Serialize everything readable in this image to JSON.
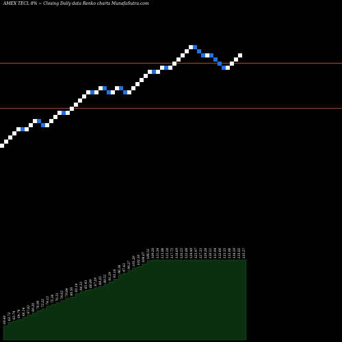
{
  "title": "AMEX  TECL  8% ~  Closing Daily data  Renko  charts MunafaSutra.com",
  "colors": {
    "background": "#000000",
    "up_brick": "#ffffff",
    "down_brick": "#1e73e8",
    "reference_line": "#b8632a",
    "volume_fill": "#0a3010",
    "volume_edge": "#1c5a22"
  },
  "chart_data": {
    "type": "renko",
    "grid": false,
    "reference_levels": [
      149.9,
      98.2
    ],
    "bricks": [
      {
        "dir": "up",
        "close": 57.7
      },
      {
        "dir": "up",
        "close": 62.4
      },
      {
        "dir": "up",
        "close": 67.1
      },
      {
        "dir": "up",
        "close": 71.8
      },
      {
        "dir": "up",
        "close": 76.5
      },
      {
        "dir": "down",
        "close": 71.8
      },
      {
        "dir": "up",
        "close": 76.5
      },
      {
        "dir": "up",
        "close": 81.2
      },
      {
        "dir": "up",
        "close": 85.9
      },
      {
        "dir": "down",
        "close": 81.2
      },
      {
        "dir": "down",
        "close": 76.5
      },
      {
        "dir": "up",
        "close": 81.2
      },
      {
        "dir": "up",
        "close": 85.9
      },
      {
        "dir": "up",
        "close": 90.6
      },
      {
        "dir": "up",
        "close": 95.3
      },
      {
        "dir": "down",
        "close": 90.6
      },
      {
        "dir": "up",
        "close": 95.3
      },
      {
        "dir": "up",
        "close": 100.0
      },
      {
        "dir": "up",
        "close": 104.7
      },
      {
        "dir": "up",
        "close": 109.4
      },
      {
        "dir": "up",
        "close": 114.1
      },
      {
        "dir": "up",
        "close": 118.8
      },
      {
        "dir": "down",
        "close": 114.1
      },
      {
        "dir": "up",
        "close": 118.8
      },
      {
        "dir": "up",
        "close": 123.5
      },
      {
        "dir": "down",
        "close": 118.8
      },
      {
        "dir": "down",
        "close": 114.1
      },
      {
        "dir": "up",
        "close": 118.8
      },
      {
        "dir": "up",
        "close": 123.5
      },
      {
        "dir": "down",
        "close": 118.8
      },
      {
        "dir": "down",
        "close": 114.1
      },
      {
        "dir": "up",
        "close": 118.8
      },
      {
        "dir": "up",
        "close": 123.5
      },
      {
        "dir": "up",
        "close": 128.2
      },
      {
        "dir": "up",
        "close": 132.9
      },
      {
        "dir": "up",
        "close": 137.6
      },
      {
        "dir": "up",
        "close": 142.3
      },
      {
        "dir": "down",
        "close": 137.6
      },
      {
        "dir": "up",
        "close": 142.3
      },
      {
        "dir": "up",
        "close": 147.0
      },
      {
        "dir": "down",
        "close": 142.3
      },
      {
        "dir": "up",
        "close": 147.0
      },
      {
        "dir": "up",
        "close": 151.7
      },
      {
        "dir": "up",
        "close": 156.4
      },
      {
        "dir": "up",
        "close": 161.1
      },
      {
        "dir": "up",
        "close": 165.8
      },
      {
        "dir": "up",
        "close": 170.5
      },
      {
        "dir": "down",
        "close": 165.8
      },
      {
        "dir": "down",
        "close": 161.1
      },
      {
        "dir": "down",
        "close": 156.4
      },
      {
        "dir": "up",
        "close": 161.1
      },
      {
        "dir": "down",
        "close": 156.4
      },
      {
        "dir": "down",
        "close": 151.7
      },
      {
        "dir": "down",
        "close": 147.0
      },
      {
        "dir": "down",
        "close": 142.3
      },
      {
        "dir": "up",
        "close": 147.0
      },
      {
        "dir": "up",
        "close": 151.7
      },
      {
        "dir": "up",
        "close": 156.4
      },
      {
        "dir": "up",
        "close": 161.1
      }
    ],
    "volume_labels": [
      "60.40",
      "62.72",
      "63.74",
      "64.74",
      "66.14",
      "67.82",
      "69.29",
      "70.99",
      "72.22",
      "74.15",
      "75.34",
      "76.51",
      "78.03",
      "79.84",
      "80.56",
      "83.14",
      "84.33",
      "85.43",
      "86.09",
      "87.29",
      "88.25",
      "89.55",
      "91.29",
      "93.18",
      "96.34",
      "97.43",
      "99.27",
      "101.29",
      "102.16",
      "104.07",
      "106.51",
      "109.20",
      "111.34",
      "113.08",
      "115.26",
      "117.75",
      "118.69",
      "120.55",
      "122.08",
      "124.49",
      "125.97",
      "127.33",
      "129.28",
      "130.51",
      "131.94",
      "132.66",
      "133.35",
      "133.98",
      "134.59",
      "135.02",
      "135.37"
    ]
  }
}
